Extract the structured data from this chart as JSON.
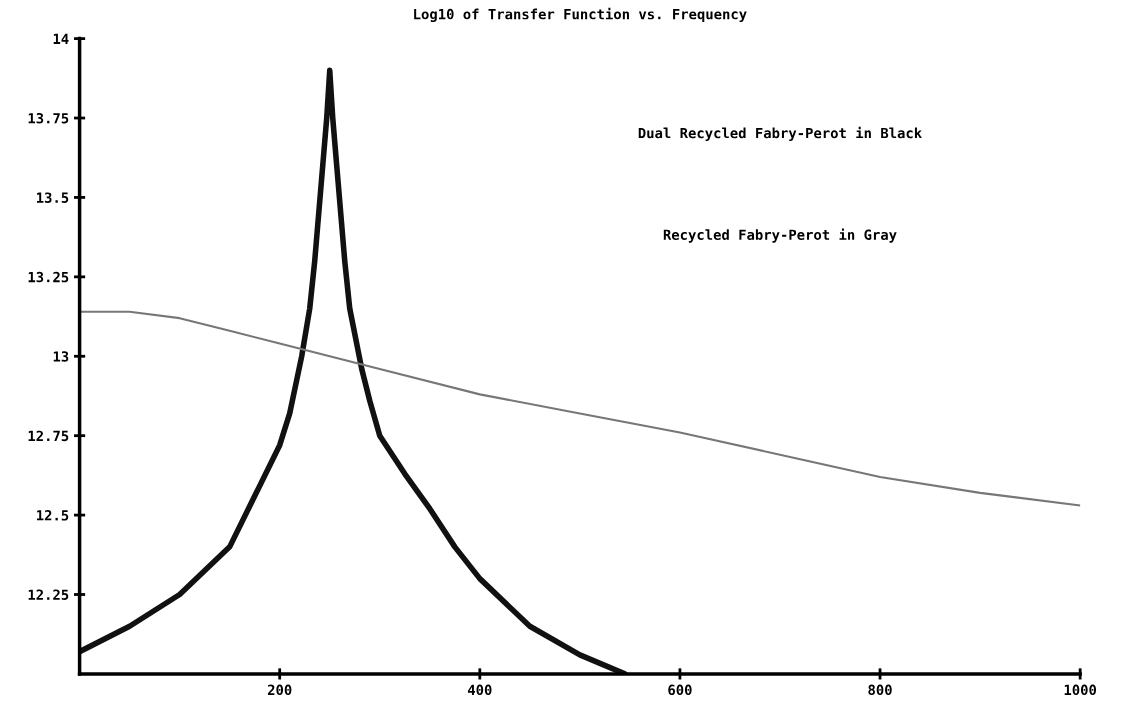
{
  "chart_data": {
    "type": "line",
    "title": "Log10 of Transfer Function vs. Frequency",
    "xlim": [
      0,
      1000
    ],
    "xticks": [
      200,
      400,
      600,
      800,
      1000
    ],
    "ylim": [
      12,
      14
    ],
    "yticks": [
      12.25,
      12.5,
      12.75,
      13,
      13.25,
      13.5,
      13.75,
      14
    ],
    "grid": false,
    "marker": "none",
    "line_style": "solid",
    "annotations": [
      "Dual Recycled Fabry-Perot in Black",
      "Recycled Fabry-Perot in Gray"
    ],
    "series": [
      {
        "color": "#111111",
        "x": [
          0,
          50,
          100,
          150,
          200,
          210,
          222,
          230,
          235,
          243,
          247,
          250,
          253,
          257,
          265,
          270,
          282,
          290,
          300,
          325,
          350,
          375,
          400,
          450,
          500,
          545
        ],
        "values": [
          12.07,
          12.15,
          12.25,
          12.4,
          12.72,
          12.82,
          13.0,
          13.15,
          13.3,
          13.6,
          13.75,
          13.9,
          13.75,
          13.6,
          13.3,
          13.15,
          12.96,
          12.86,
          12.75,
          12.63,
          12.52,
          12.4,
          12.3,
          12.15,
          12.06,
          12.0
        ]
      },
      {
        "color": "#777777",
        "x": [
          0,
          50,
          100,
          150,
          200,
          250,
          300,
          400,
          500,
          600,
          700,
          800,
          900,
          1000
        ],
        "values": [
          13.14,
          13.14,
          13.12,
          13.08,
          13.04,
          13.0,
          12.96,
          12.88,
          12.82,
          12.76,
          12.69,
          12.62,
          12.57,
          12.53
        ]
      }
    ]
  }
}
